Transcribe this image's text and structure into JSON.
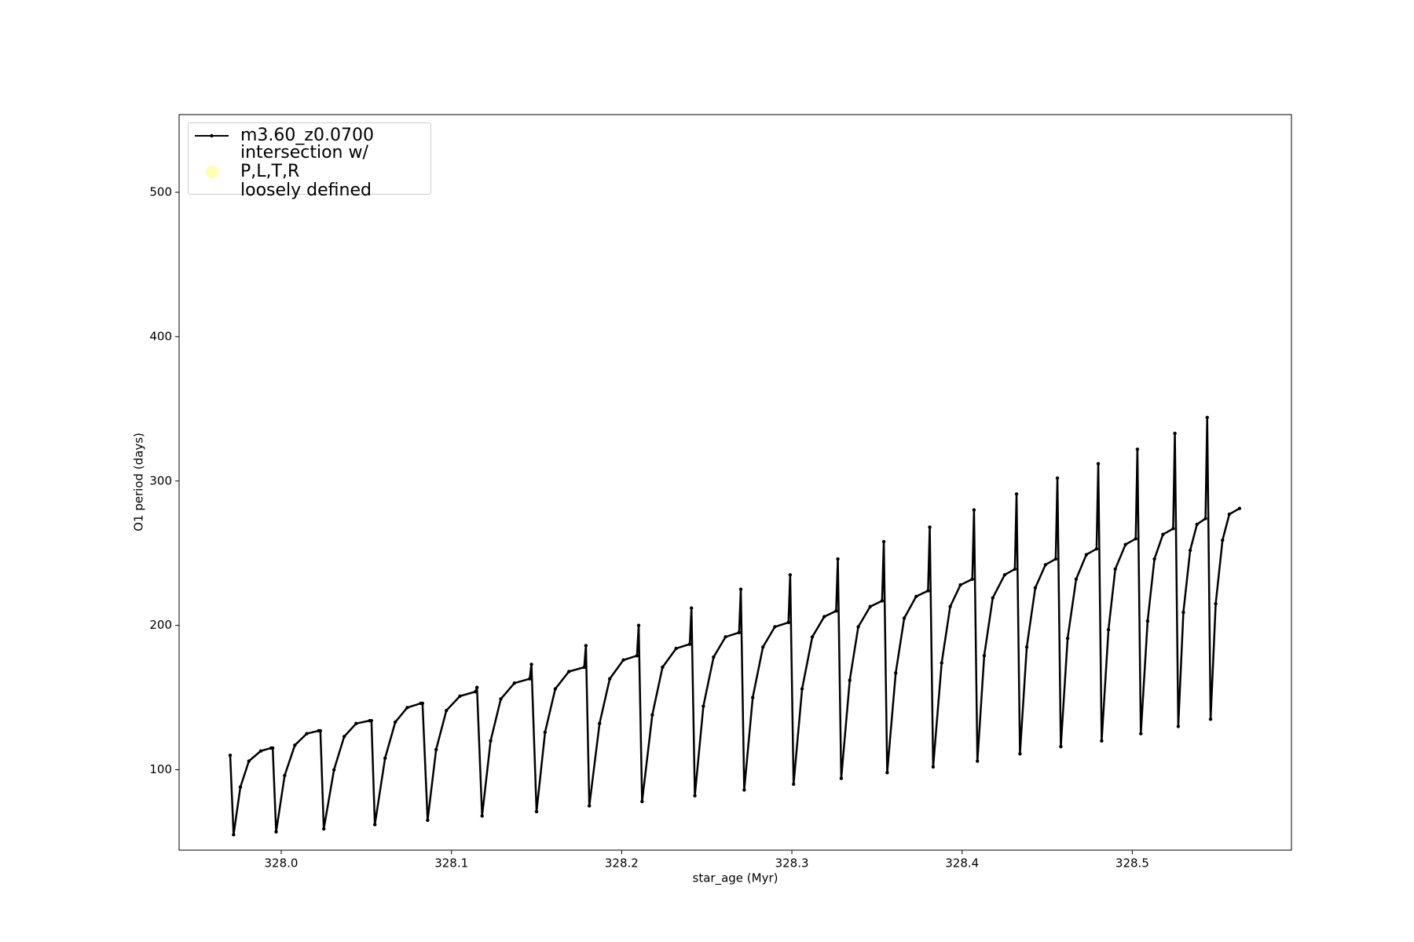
{
  "chart_data": {
    "type": "line",
    "xlabel": "star_age (Myr)",
    "ylabel": "O1 period (days)",
    "xlim": [
      327.94,
      328.5935
    ],
    "ylim": [
      44.3,
      553.8
    ],
    "xticks": [
      {
        "value": 328.0,
        "label": "328.0"
      },
      328.1,
      328.2,
      328.3,
      328.4,
      328.5
    ],
    "yticks": [
      100,
      200,
      300,
      400,
      500
    ],
    "grid": false,
    "legend": "upper left",
    "series": [
      {
        "name": "m3.60_z0.0700",
        "color": "#000000",
        "marker": "dot",
        "x": [
          327.97,
          327.972,
          327.976,
          327.981,
          327.988,
          327.994,
          327.995,
          327.997,
          328.002,
          328.008,
          328.015,
          328.022,
          328.023,
          328.025,
          328.031,
          328.037,
          328.044,
          328.052,
          328.053,
          328.055,
          328.061,
          328.067,
          328.074,
          328.082,
          328.083,
          328.086,
          328.091,
          328.097,
          328.105,
          328.114,
          328.115,
          328.118,
          328.123,
          328.129,
          328.137,
          328.146,
          328.147,
          328.15,
          328.155,
          328.161,
          328.169,
          328.178,
          328.179,
          328.181,
          328.187,
          328.193,
          328.201,
          328.209,
          328.21,
          328.212,
          328.218,
          328.224,
          328.232,
          328.24,
          328.241,
          328.243,
          328.248,
          328.254,
          328.261,
          328.269,
          328.27,
          328.272,
          328.277,
          328.283,
          328.29,
          328.298,
          328.299,
          328.301,
          328.306,
          328.312,
          328.319,
          328.326,
          328.327,
          328.329,
          328.334,
          328.339,
          328.346,
          328.353,
          328.354,
          328.356,
          328.361,
          328.366,
          328.373,
          328.38,
          328.381,
          328.383,
          328.388,
          328.393,
          328.399,
          328.406,
          328.407,
          328.409,
          328.413,
          328.418,
          328.425,
          328.431,
          328.432,
          328.434,
          328.438,
          328.443,
          328.449,
          328.455,
          328.456,
          328.458,
          328.462,
          328.467,
          328.473,
          328.479,
          328.48,
          328.482,
          328.486,
          328.49,
          328.496,
          328.502,
          328.503,
          328.505,
          328.509,
          328.513,
          328.518,
          328.524,
          328.525,
          328.527,
          328.53,
          328.534,
          328.538,
          328.543,
          328.544,
          328.546,
          328.549,
          328.553,
          328.557,
          328.563
        ],
        "values": [
          110,
          55,
          88,
          106,
          113,
          115,
          115,
          57,
          96,
          117,
          125,
          127,
          127,
          59,
          100,
          123,
          132,
          134,
          134,
          62,
          108,
          133,
          143,
          146,
          146,
          65,
          114,
          141,
          151,
          154,
          157,
          68,
          120,
          149,
          160,
          163,
          173,
          71,
          126,
          156,
          168,
          171,
          186,
          75,
          132,
          163,
          176,
          179,
          200,
          78,
          138,
          171,
          184,
          187,
          212,
          82,
          144,
          178,
          192,
          195,
          225,
          86,
          150,
          185,
          199,
          202,
          235,
          90,
          156,
          192,
          206,
          210,
          246,
          94,
          162,
          199,
          213,
          217,
          258,
          98,
          167,
          205,
          220,
          224,
          268,
          102,
          174,
          213,
          228,
          232,
          280,
          106,
          179,
          219,
          235,
          239,
          291,
          111,
          185,
          226,
          242,
          246,
          302,
          116,
          191,
          232,
          249,
          253,
          312,
          120,
          197,
          239,
          256,
          260,
          322,
          125,
          203,
          246,
          263,
          267,
          333,
          130,
          209,
          252,
          270,
          274,
          344,
          135,
          215,
          259,
          277,
          281
        ]
      },
      {
        "name": "intersection w/ P,L,T,R\nloosely defined",
        "color": "#ffffb0",
        "marker": "circle",
        "x": [],
        "values": []
      }
    ]
  }
}
